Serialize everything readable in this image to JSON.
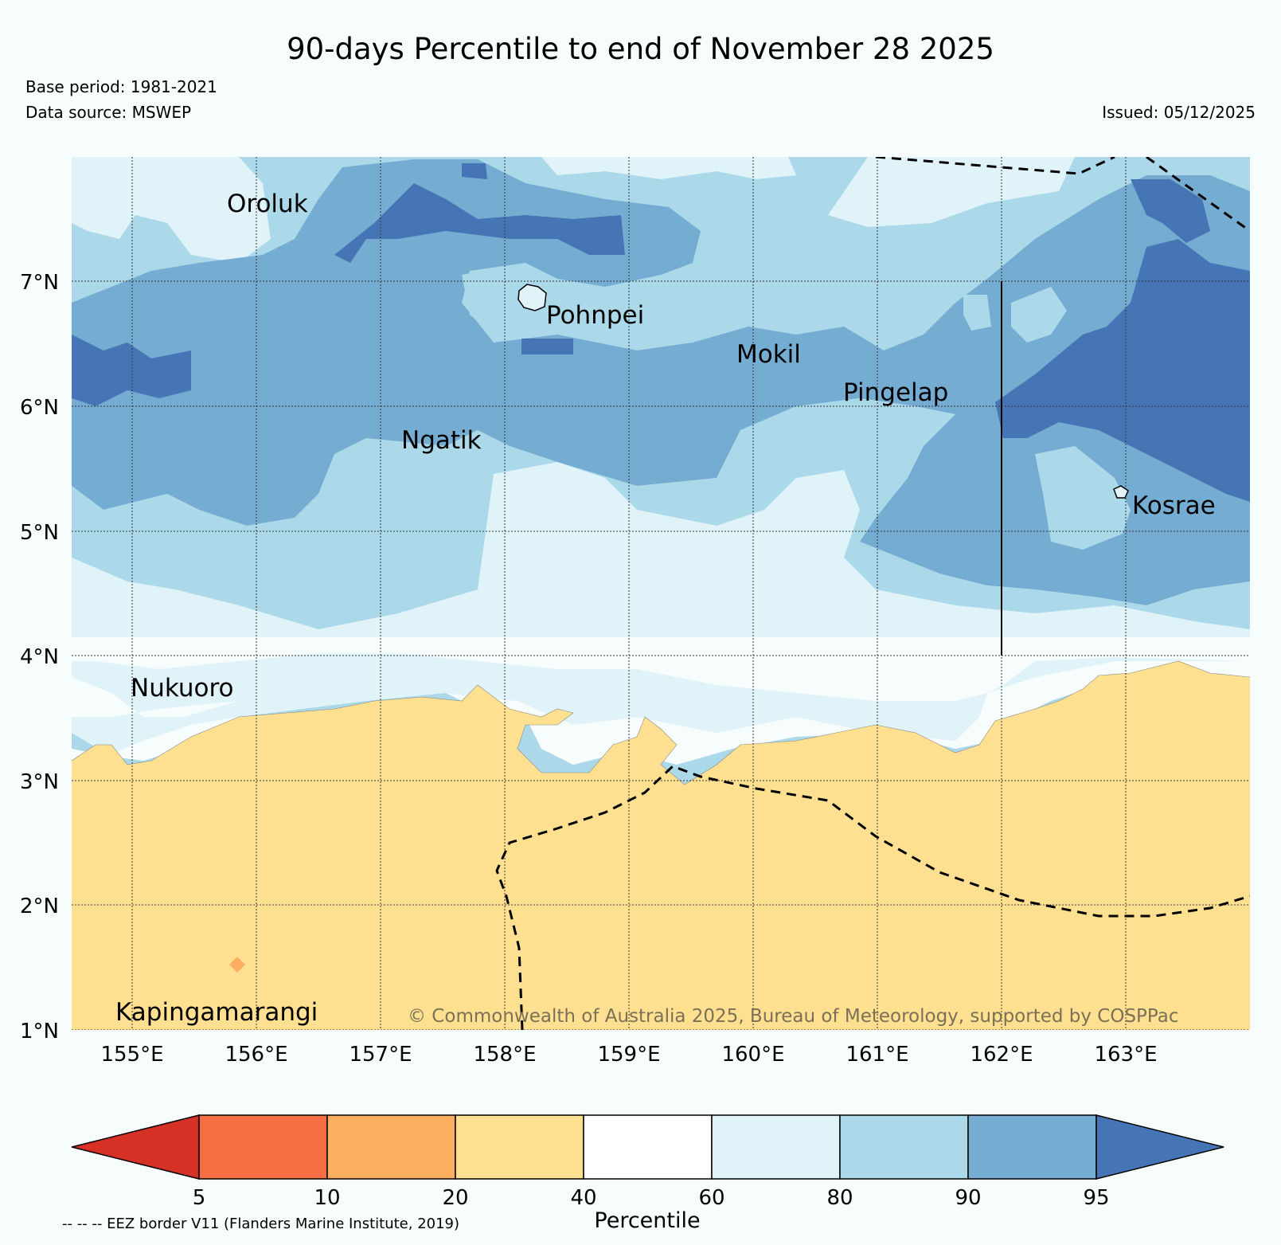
{
  "title": "90-days Percentile to end of November 28 2025",
  "base_period": "Base period: 1981-2021",
  "data_source": "Data source: MSWEP",
  "issued": "Issued: 05/12/2025",
  "copyright": "© Commonwealth of Australia 2025, Bureau of Meteorology, supported by COSPPac",
  "eez_note": "-- -- -- EEZ border V11 (Flanders Marine Institute, 2019)",
  "map": {
    "lon_labels": [
      "155°E",
      "156°E",
      "157°E",
      "158°E",
      "159°E",
      "160°E",
      "161°E",
      "162°E",
      "163°E"
    ],
    "lat_labels": [
      "7°N",
      "6°N",
      "5°N",
      "4°N",
      "3°N",
      "2°N",
      "1°N"
    ],
    "places": [
      {
        "name": "Oroluk"
      },
      {
        "name": "Pohnpei"
      },
      {
        "name": "Mokil"
      },
      {
        "name": "Pingelap"
      },
      {
        "name": "Ngatik"
      },
      {
        "name": "Kosrae"
      },
      {
        "name": "Nukuoro"
      },
      {
        "name": "Kapingamarangi"
      }
    ]
  },
  "colorbar": {
    "label": "Percentile",
    "ticks": [
      "5",
      "10",
      "20",
      "40",
      "60",
      "80",
      "90",
      "95"
    ],
    "colors": {
      "below_5": "#d73027",
      "p5_10": "#f46d43",
      "p10_20": "#fdae61",
      "p20_40": "#fee090",
      "p40_60": "#ffffff",
      "p60_80": "#e0f3f8",
      "p80_90": "#abd9e9",
      "p90_95": "#74add1",
      "above_95": "#4575b4"
    }
  },
  "colors": {
    "background": "#f7fcfd",
    "dry": "#fee090",
    "near_normal": "#f7fcfd",
    "p60_80": "#e0f3f8",
    "p80_90": "#abd9e9",
    "p90_95": "#74add1",
    "above_95": "#4575b4",
    "p10_20_spot": "#fdae61"
  }
}
